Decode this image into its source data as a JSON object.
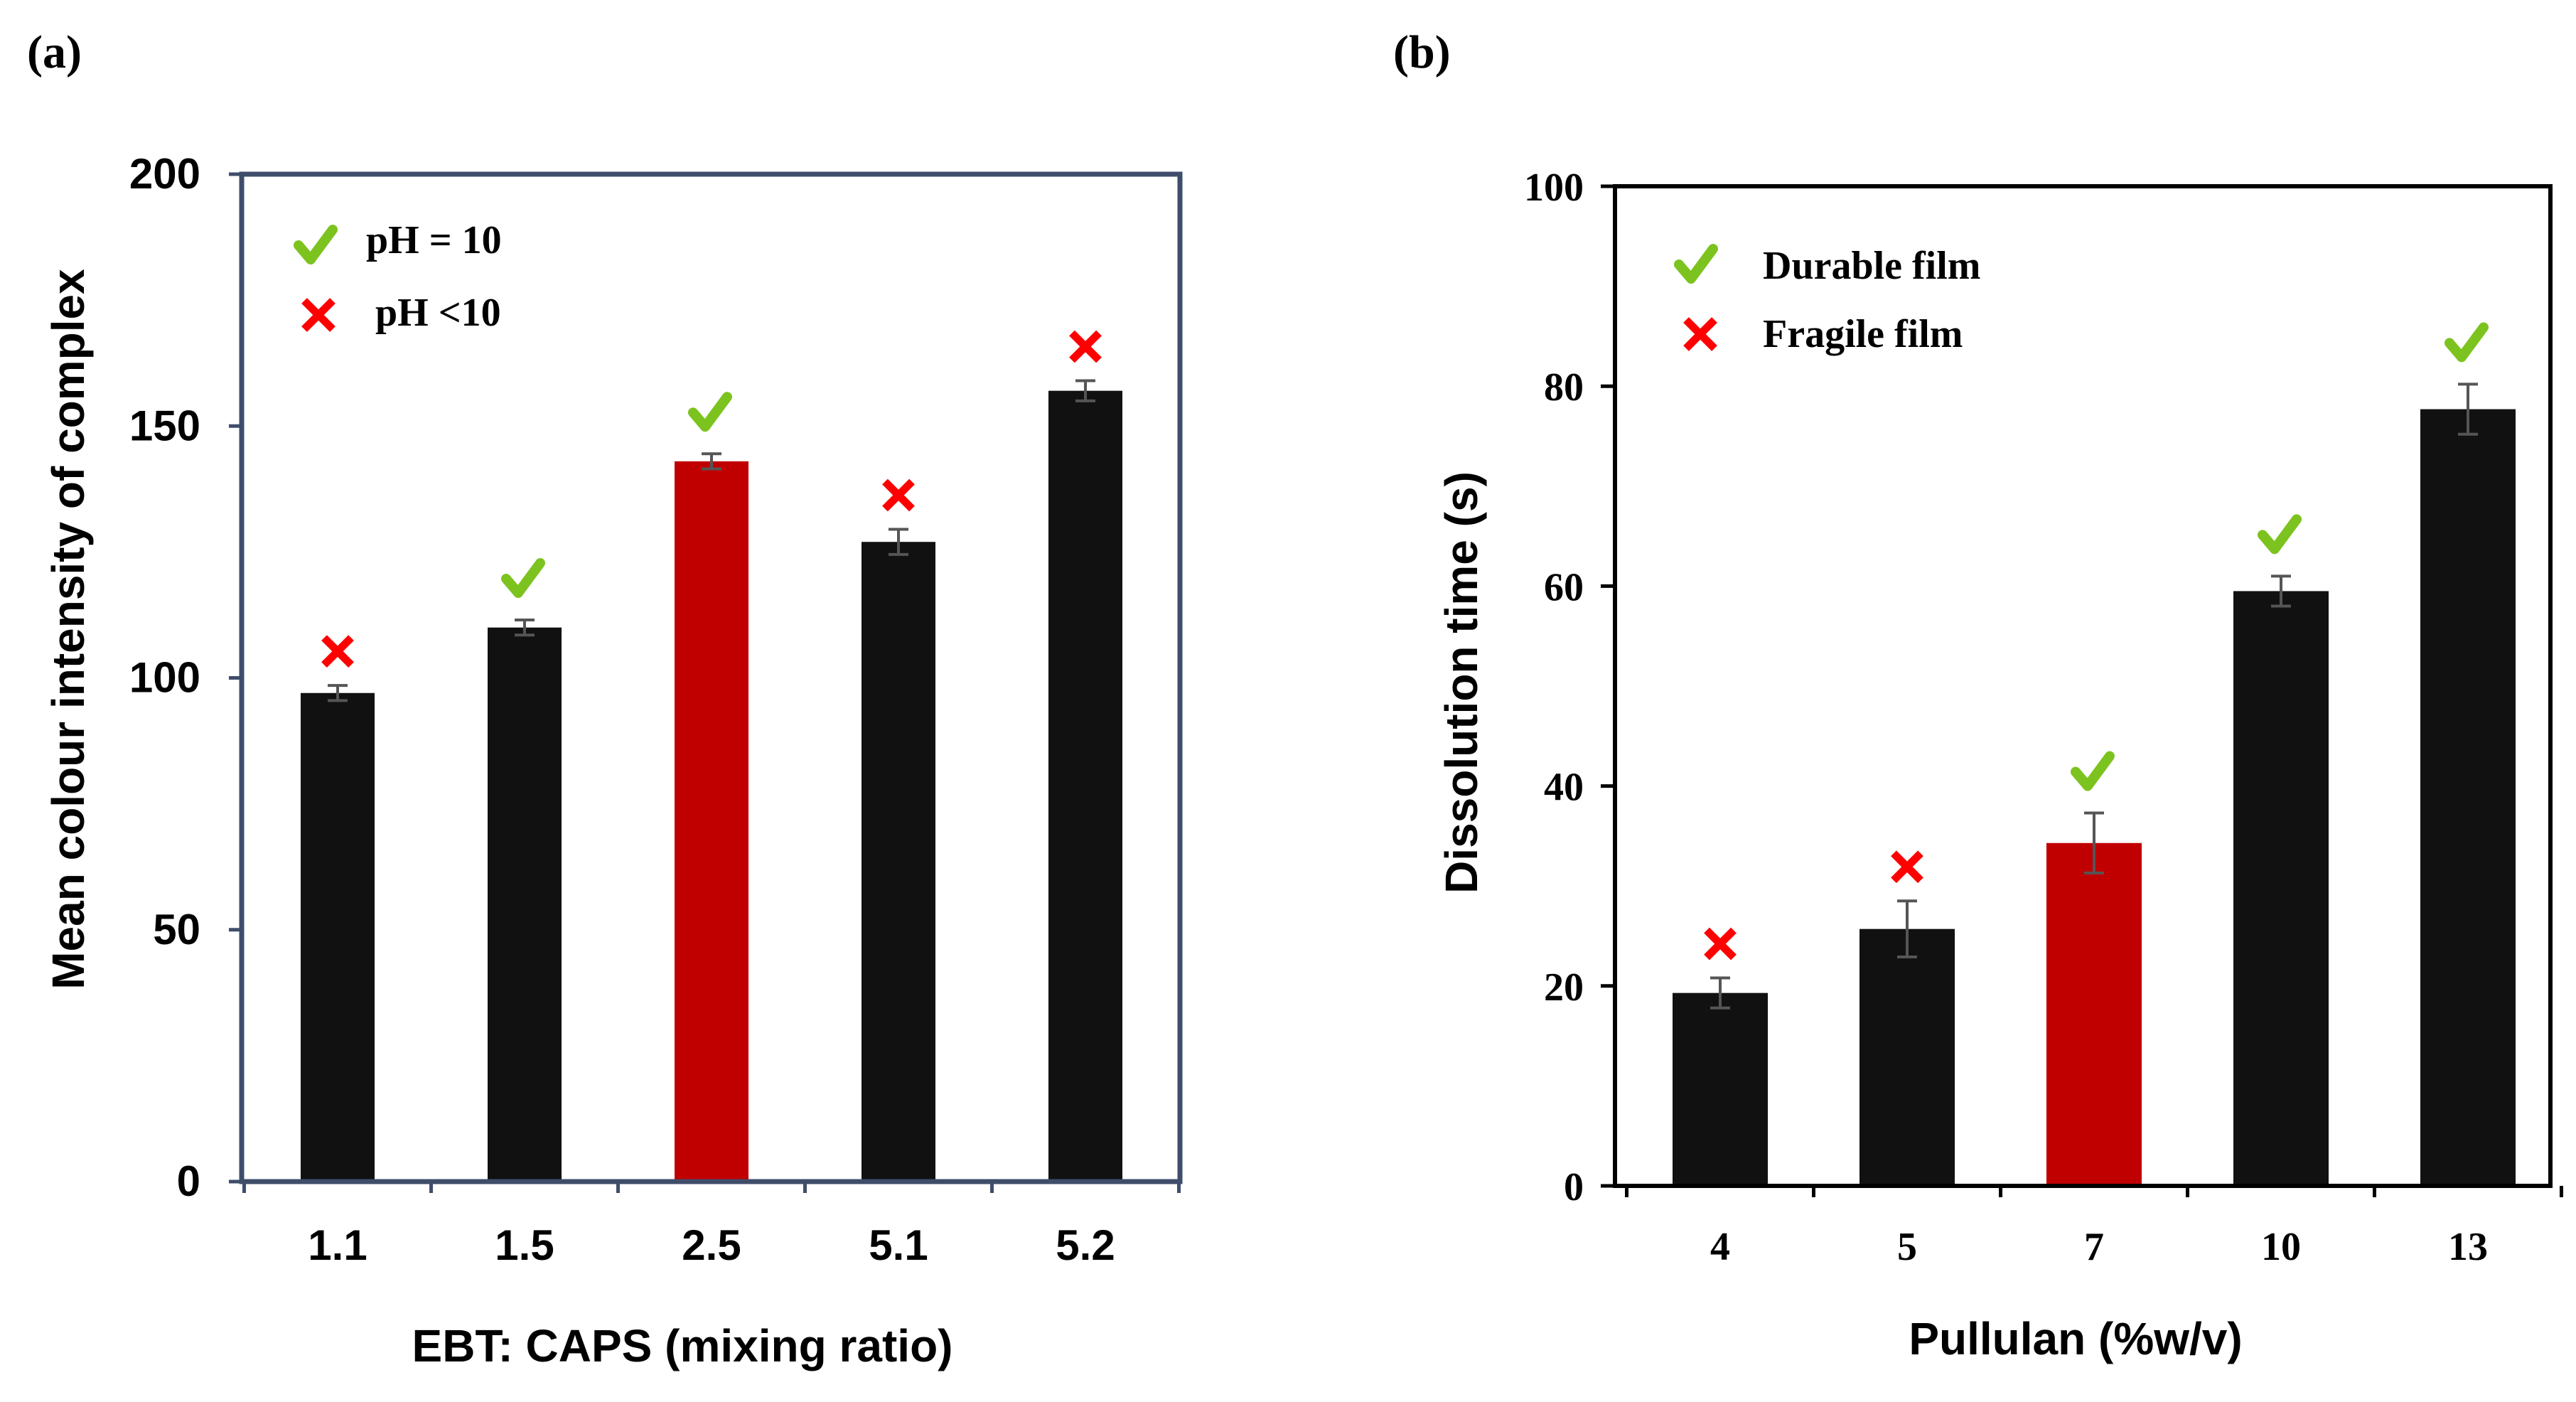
{
  "chart_data": [
    {
      "panel_label": "(a)",
      "type": "bar",
      "categories": [
        "1.1",
        "1.5",
        "2.5",
        "5.1",
        "5.2"
      ],
      "values": [
        97,
        110,
        143,
        127,
        157
      ],
      "errors": [
        1.5,
        1.5,
        1.5,
        2.5,
        2
      ],
      "highlight_index": 2,
      "marks": [
        "cross",
        "check",
        "check",
        "cross",
        "cross"
      ],
      "title": "",
      "xlabel": "EBT: CAPS (mixing ratio)",
      "ylabel": "Mean colour intensity of complex",
      "ylim": [
        0,
        200
      ],
      "yticks": [
        "0",
        "50",
        "100",
        "150",
        "200"
      ],
      "legend": {
        "placement": "top-left",
        "check_label": "pH = 10",
        "cross_label": "pH <10"
      }
    },
    {
      "panel_label": "(b)",
      "type": "bar",
      "categories": [
        "4",
        "5",
        "7",
        "10",
        "13"
      ],
      "values": [
        19.3,
        25.7,
        34.3,
        59.5,
        77.7
      ],
      "errors": [
        1.5,
        2.8,
        3.0,
        1.5,
        2.5
      ],
      "highlight_index": 2,
      "marks": [
        "cross",
        "cross",
        "check",
        "check",
        "check"
      ],
      "title": "",
      "xlabel": "Pullulan (%w/v)",
      "ylabel": "Dissolution time (s)",
      "ylim": [
        0,
        100
      ],
      "yticks": [
        "0",
        "20",
        "40",
        "60",
        "80",
        "100"
      ],
      "legend": {
        "placement": "top-left",
        "check_label": "Durable film",
        "cross_label": "Fragile film"
      }
    }
  ],
  "colors": {
    "bar": "#111111",
    "highlight_bar": "#c00000",
    "check": "#7dc31f",
    "cross": "#ff0000",
    "axis_a": "#3f4d6b",
    "axis_b": "#000000",
    "error_bar": "#555555"
  }
}
